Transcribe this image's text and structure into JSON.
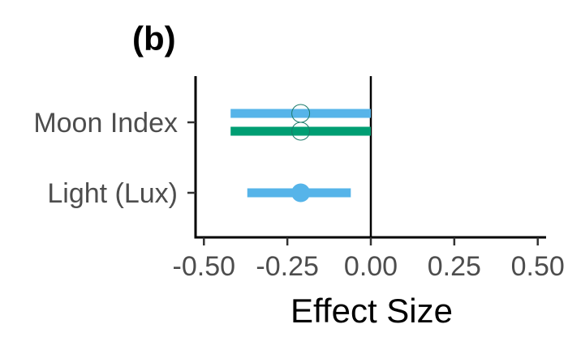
{
  "chart_data": {
    "type": "forest",
    "panel_label": "(b)",
    "title": "",
    "xlabel": "Effect Size",
    "ylabel": "",
    "xlim": [
      -0.525,
      0.525
    ],
    "xticks": [
      -0.5,
      -0.25,
      0.0,
      0.25,
      0.5
    ],
    "xtick_labels": [
      "-0.50",
      "-0.25",
      "0.00",
      "0.25",
      "0.50"
    ],
    "reference_line": 0.0,
    "categories": [
      "Moon Index",
      "Light (Lux)"
    ],
    "series": [
      {
        "color": "#56B4E9",
        "points": [
          {
            "category": "Moon Index",
            "estimate": -0.21,
            "lower": -0.42,
            "upper": 0.0,
            "marker": "hollow"
          },
          {
            "category": "Light (Lux)",
            "estimate": -0.21,
            "lower": -0.37,
            "upper": -0.06,
            "marker": "filled"
          }
        ]
      },
      {
        "color": "#009E73",
        "points": [
          {
            "category": "Moon Index",
            "estimate": -0.21,
            "lower": -0.42,
            "upper": 0.0,
            "marker": "hollow"
          }
        ]
      }
    ],
    "grid": false,
    "legend": "none"
  }
}
